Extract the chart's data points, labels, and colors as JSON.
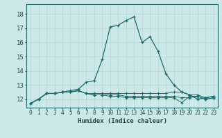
{
  "title": "",
  "xlabel": "Humidex (Indice chaleur)",
  "bg_color": "#cce8e8",
  "grid_color": "#b8d8d8",
  "line_color": "#1a6b6b",
  "xlim": [
    -0.5,
    23.5
  ],
  "ylim": [
    11.4,
    18.7
  ],
  "xticks": [
    0,
    1,
    2,
    3,
    4,
    5,
    6,
    7,
    8,
    9,
    10,
    11,
    12,
    13,
    14,
    15,
    16,
    17,
    18,
    19,
    20,
    21,
    22,
    23
  ],
  "yticks": [
    12,
    13,
    14,
    15,
    16,
    17,
    18
  ],
  "series1": [
    11.7,
    12.0,
    12.4,
    12.4,
    12.5,
    12.6,
    12.7,
    13.2,
    13.3,
    14.8,
    17.1,
    17.2,
    17.55,
    17.8,
    16.0,
    16.4,
    15.4,
    13.8,
    13.0,
    12.5,
    12.3,
    12.0,
    12.1,
    12.2
  ],
  "series2": [
    11.7,
    12.0,
    12.4,
    12.4,
    12.5,
    12.5,
    12.6,
    12.4,
    12.4,
    12.4,
    12.4,
    12.4,
    12.4,
    12.4,
    12.4,
    12.4,
    12.4,
    12.4,
    12.5,
    12.5,
    12.3,
    12.3,
    12.1,
    12.2
  ],
  "series3": [
    11.7,
    12.0,
    12.4,
    12.4,
    12.5,
    12.5,
    12.6,
    12.4,
    12.3,
    12.3,
    12.3,
    12.3,
    12.2,
    12.2,
    12.2,
    12.2,
    12.2,
    12.2,
    12.2,
    12.1,
    12.1,
    12.2,
    12.0,
    12.1
  ],
  "series4": [
    11.7,
    12.0,
    12.4,
    12.4,
    12.5,
    12.5,
    12.6,
    12.4,
    12.3,
    12.3,
    12.2,
    12.2,
    12.1,
    12.1,
    12.1,
    12.1,
    12.1,
    12.1,
    12.1,
    11.75,
    12.2,
    12.2,
    12.0,
    12.1
  ]
}
